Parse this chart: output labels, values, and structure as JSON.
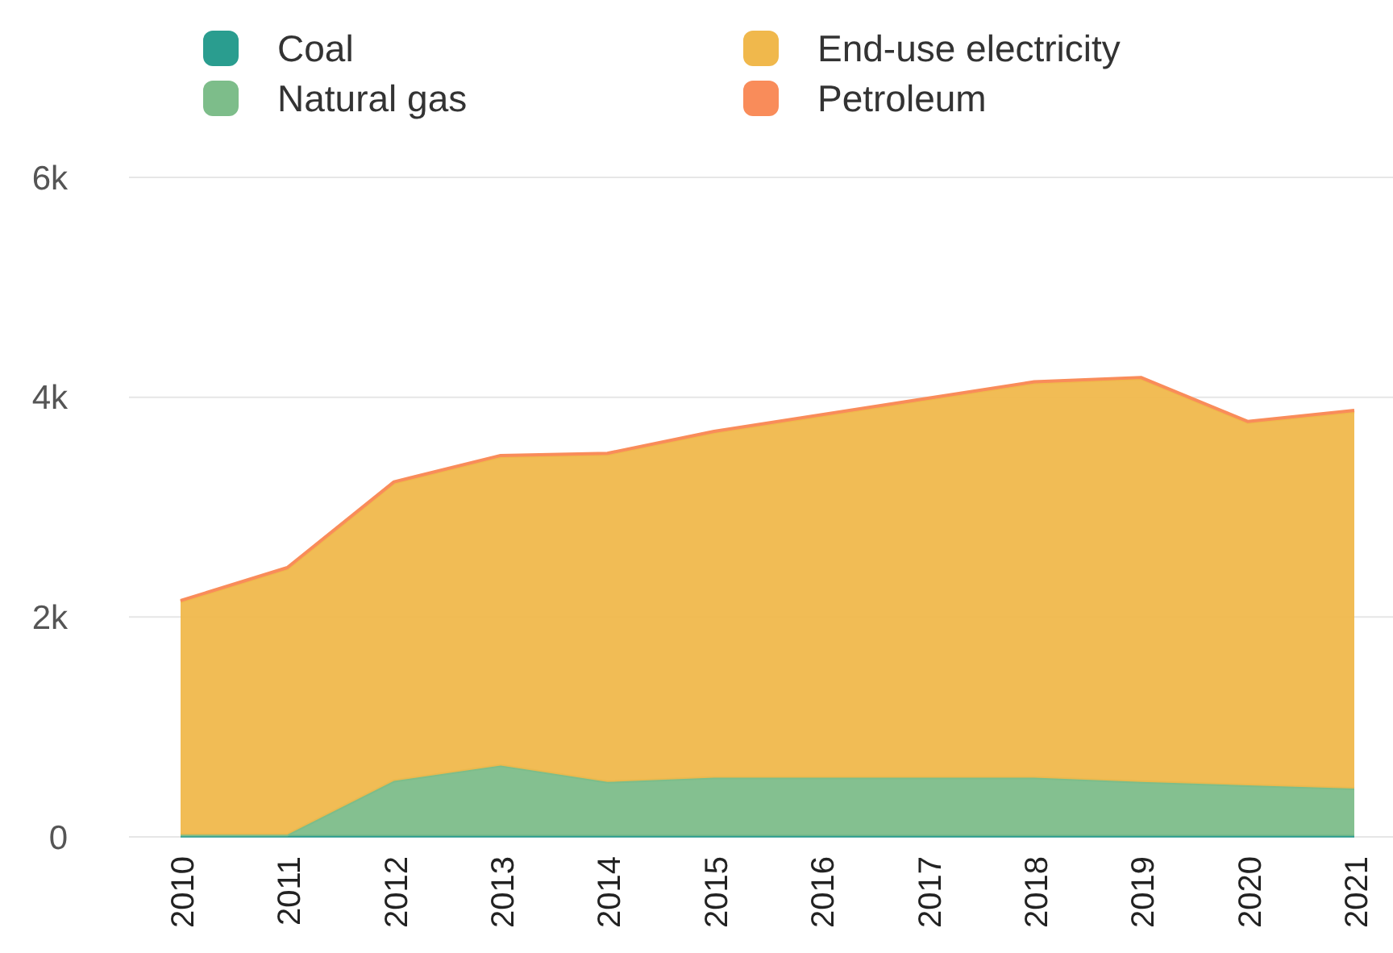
{
  "chart_data": {
    "type": "area",
    "stacked": true,
    "categories": [
      "2010",
      "2011",
      "2012",
      "2013",
      "2014",
      "2015",
      "2016",
      "2017",
      "2018",
      "2019",
      "2020",
      "2021"
    ],
    "series": [
      {
        "name": "Coal",
        "color": "#2a9d8f",
        "values": [
          10,
          10,
          10,
          10,
          10,
          10,
          10,
          10,
          10,
          10,
          10,
          10
        ]
      },
      {
        "name": "Natural gas",
        "color": "#7dbd8a",
        "values": [
          10,
          10,
          500,
          640,
          490,
          530,
          530,
          530,
          530,
          490,
          460,
          430
        ]
      },
      {
        "name": "End-use electricity",
        "color": "#f0b84c",
        "values": [
          2120,
          2420,
          2710,
          2810,
          2980,
          3140,
          3290,
          3440,
          3590,
          3670,
          3300,
          3430
        ]
      },
      {
        "name": "Petroleum",
        "color": "#f98c5a",
        "values": [
          10,
          10,
          10,
          10,
          10,
          10,
          10,
          10,
          10,
          10,
          10,
          10
        ]
      }
    ],
    "ylim": [
      0,
      6000
    ],
    "yticks": [
      {
        "value": 0,
        "label": "0"
      },
      {
        "value": 2000,
        "label": "2k"
      },
      {
        "value": 4000,
        "label": "4k"
      },
      {
        "value": 6000,
        "label": "6k"
      }
    ],
    "grid": "y",
    "legend": "top"
  }
}
